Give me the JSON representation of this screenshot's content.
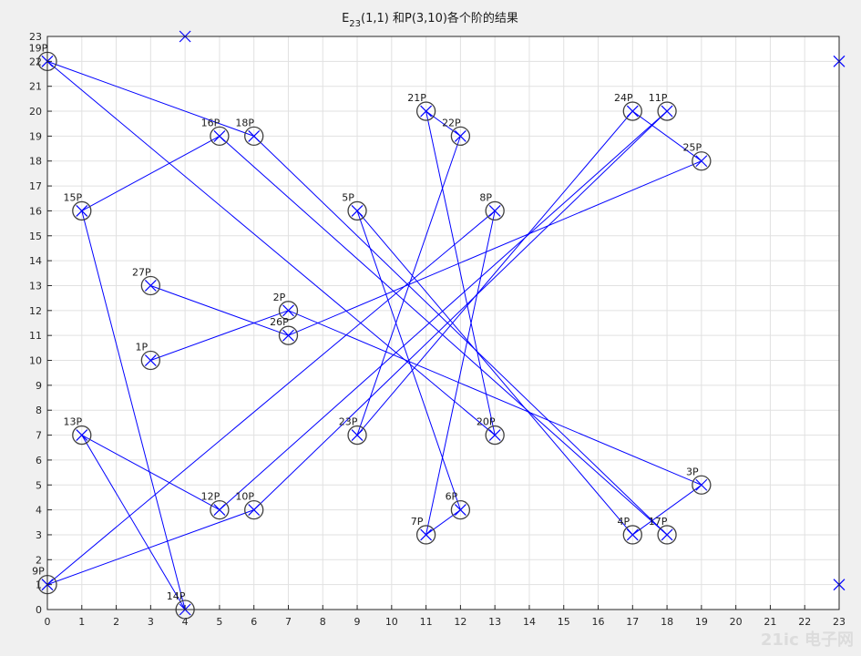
{
  "chart_data": {
    "type": "scatter",
    "title_main": "E",
    "title_sub": "23",
    "title_rest": "(1,1) 和P(3,10)各个阶的结果",
    "xlim": [
      0,
      23
    ],
    "ylim": [
      0,
      23
    ],
    "xticks": [
      "0",
      "1",
      "2",
      "3",
      "4",
      "5",
      "6",
      "7",
      "8",
      "9",
      "10",
      "11",
      "12",
      "13",
      "14",
      "15",
      "16",
      "17",
      "18",
      "19",
      "20",
      "21",
      "22",
      "23"
    ],
    "yticks": [
      "0",
      "1",
      "2",
      "3",
      "4",
      "5",
      "6",
      "7",
      "8",
      "9",
      "10",
      "11",
      "12",
      "13",
      "14",
      "15",
      "16",
      "17",
      "18",
      "19",
      "20",
      "21",
      "22",
      "23"
    ],
    "grid": true,
    "colors": {
      "line": "#0000ff",
      "circle": "#404040",
      "axis": "#262626",
      "grid": "#e1e1e1",
      "bg": "#ffffff"
    },
    "points": [
      {
        "label": "1P",
        "x": 3,
        "y": 10
      },
      {
        "label": "2P",
        "x": 7,
        "y": 12
      },
      {
        "label": "3P",
        "x": 19,
        "y": 5
      },
      {
        "label": "4P",
        "x": 17,
        "y": 3
      },
      {
        "label": "5P",
        "x": 9,
        "y": 16
      },
      {
        "label": "6P",
        "x": 12,
        "y": 4
      },
      {
        "label": "7P",
        "x": 11,
        "y": 3
      },
      {
        "label": "8P",
        "x": 13,
        "y": 16
      },
      {
        "label": "9P",
        "x": 0,
        "y": 1
      },
      {
        "label": "10P",
        "x": 6,
        "y": 4
      },
      {
        "label": "11P",
        "x": 18,
        "y": 20
      },
      {
        "label": "12P",
        "x": 5,
        "y": 4
      },
      {
        "label": "13P",
        "x": 1,
        "y": 7
      },
      {
        "label": "14P",
        "x": 4,
        "y": 0
      },
      {
        "label": "15P",
        "x": 1,
        "y": 16
      },
      {
        "label": "16P",
        "x": 5,
        "y": 19
      },
      {
        "label": "17P",
        "x": 18,
        "y": 3
      },
      {
        "label": "18P",
        "x": 6,
        "y": 19
      },
      {
        "label": "19P",
        "x": 0,
        "y": 22
      },
      {
        "label": "20P",
        "x": 13,
        "y": 7
      },
      {
        "label": "21P",
        "x": 11,
        "y": 20
      },
      {
        "label": "22P",
        "x": 12,
        "y": 19
      },
      {
        "label": "23P",
        "x": 9,
        "y": 7
      },
      {
        "label": "24P",
        "x": 17,
        "y": 20
      },
      {
        "label": "25P",
        "x": 19,
        "y": 18
      },
      {
        "label": "26P",
        "x": 7,
        "y": 11
      },
      {
        "label": "27P",
        "x": 3,
        "y": 13
      }
    ],
    "extra_markers": [
      {
        "x": 4,
        "y": 23
      },
      {
        "x": 23,
        "y": 22
      },
      {
        "x": 23,
        "y": 1
      }
    ],
    "watermark": "21ic 电子网"
  }
}
